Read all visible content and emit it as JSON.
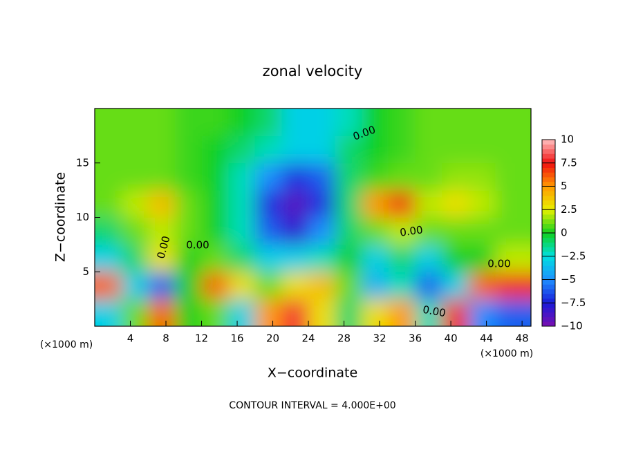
{
  "chart_data": {
    "type": "contour",
    "title": "zonal velocity",
    "x_label": "X−coordinate",
    "y_label": "Z−coordinate",
    "x_unit": "(×1000 m)",
    "footer": "CONTOUR INTERVAL = 4.000E+00",
    "xlim": [
      0,
      49
    ],
    "ylim": [
      0,
      20
    ],
    "xticks": [
      4,
      8,
      12,
      16,
      20,
      24,
      28,
      32,
      36,
      40,
      44,
      48
    ],
    "yticks": [
      5,
      10,
      15
    ],
    "x": [
      1.5,
      4.5,
      7.5,
      10.5,
      13.5,
      16.5,
      19.5,
      22.5,
      25.5,
      28.5,
      31.5,
      34.5,
      37.5,
      40.5,
      43.5,
      46.5
    ],
    "y": [
      1.25,
      3.75,
      6.25,
      8.75,
      11.25,
      13.75,
      16.25,
      18.75
    ],
    "z": [
      [
        -3,
        1,
        6,
        0,
        1,
        -3,
        5,
        8,
        3,
        -1,
        3,
        5,
        -2,
        7,
        -5,
        -6
      ],
      [
        6,
        -3,
        -6,
        0,
        6,
        3,
        1,
        3,
        4,
        1,
        -4,
        -2,
        -6,
        -3,
        6,
        7
      ],
      [
        -3,
        -1,
        3,
        0,
        1,
        -1,
        -3,
        -3,
        -2,
        0,
        -3,
        -1,
        -3,
        0,
        0,
        2
      ],
      [
        -1,
        1,
        2,
        1,
        0,
        -2,
        -6,
        -8,
        -5,
        -1,
        1,
        2,
        1,
        1,
        1,
        1
      ],
      [
        1,
        2,
        4,
        1,
        0,
        -2,
        -7,
        -9,
        -7,
        -1,
        5,
        7,
        2,
        3,
        2,
        1
      ],
      [
        1,
        1,
        1,
        0.5,
        0,
        -2,
        -5,
        -7,
        -6,
        -1,
        0.5,
        1,
        1,
        1.5,
        1.5,
        1
      ],
      [
        1,
        1,
        1,
        0.5,
        0,
        -1,
        -2,
        -3,
        -3,
        -1,
        0,
        0.5,
        1,
        1,
        1,
        1
      ],
      [
        1,
        1,
        1,
        0.5,
        0.5,
        0,
        -1,
        -3,
        -3,
        -2,
        0,
        0.5,
        1,
        1,
        1,
        1
      ]
    ],
    "clim": [
      -10,
      10
    ],
    "colorscale": [
      "#7a10b0",
      "#1a1ad8",
      "#1e90ff",
      "#00e0e0",
      "#10d020",
      "#e8f000",
      "#ff9a00",
      "#f01010",
      "#ffc0c0"
    ],
    "cticks": [
      {
        "value": -10,
        "label": "−10"
      },
      {
        "value": -7.5,
        "label": "−7.5"
      },
      {
        "value": -5,
        "label": "−5"
      },
      {
        "value": -2.5,
        "label": "−2.5"
      },
      0,
      2.5,
      5,
      7.5,
      10
    ],
    "annotations": [
      "0.00",
      "0.00",
      "0.00",
      "0.00",
      "0.00",
      "0.00"
    ]
  }
}
